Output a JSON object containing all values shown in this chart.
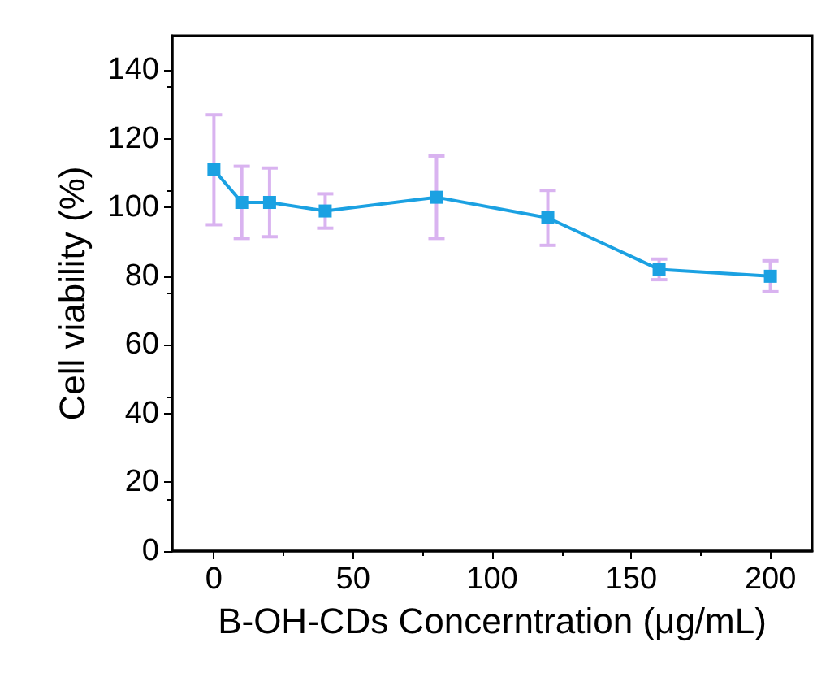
{
  "chart_data": {
    "type": "line",
    "xlabel": "B-OH-CDs Concerntration (μg/mL)",
    "ylabel": "Cell viability (%)",
    "x": [
      0,
      10,
      20,
      40,
      80,
      120,
      160,
      200
    ],
    "series": [
      {
        "color": "#1ba1e2",
        "values": [
          111,
          101.5,
          101.5,
          99,
          103,
          97,
          82,
          80
        ],
        "errors": [
          16,
          10.5,
          10,
          5,
          12,
          8,
          3,
          4.5
        ]
      }
    ],
    "xlim": [
      -15,
      215
    ],
    "xticks": [
      0,
      50,
      100,
      150,
      200
    ],
    "ylim": [
      0,
      150
    ],
    "yticks": [
      0,
      20,
      40,
      60,
      80,
      100,
      120,
      140
    ],
    "marker": "square",
    "line_style": "solid",
    "grid": false,
    "legend": false
  }
}
